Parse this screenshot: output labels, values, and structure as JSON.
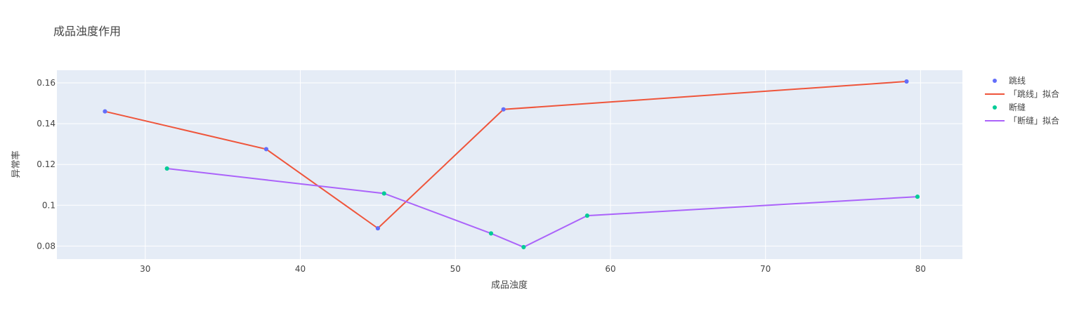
{
  "chart_data": {
    "type": "scatter",
    "title": "成品浊度作用",
    "xlabel": "成品浊度",
    "ylabel": "异常率",
    "xlim": [
      24.3,
      82.7
    ],
    "ylim": [
      0.0736,
      0.1662
    ],
    "xticks": [
      30,
      40,
      50,
      60,
      70,
      80
    ],
    "yticks": [
      0.08,
      0.1,
      0.12,
      0.14,
      0.16
    ],
    "ytick_labels": [
      "0.08",
      "0.1",
      "0.12",
      "0.14",
      "0.16"
    ],
    "grid": true,
    "legend_position": "top-right",
    "series": [
      {
        "name": "跳线",
        "mode": "markers",
        "color": "#636efa",
        "x": [
          27.4,
          37.8,
          45.0,
          53.1,
          79.1
        ],
        "y": [
          0.146,
          0.1275,
          0.0887,
          0.147,
          0.1607
        ]
      },
      {
        "name": "「跳线」拟合",
        "mode": "lines",
        "color": "#ef553b",
        "x": [
          27.4,
          37.8,
          45.0,
          53.1,
          79.1
        ],
        "y": [
          0.146,
          0.1275,
          0.0887,
          0.147,
          0.1607
        ]
      },
      {
        "name": "断缝",
        "mode": "markers",
        "color": "#00cc96",
        "x": [
          31.4,
          45.4,
          52.3,
          54.4,
          58.5,
          79.8
        ],
        "y": [
          0.118,
          0.1058,
          0.0862,
          0.0795,
          0.0949,
          0.1042
        ]
      },
      {
        "name": "「断缝」拟合",
        "mode": "lines",
        "color": "#ab63fa",
        "x": [
          31.4,
          45.4,
          52.3,
          54.4,
          58.5,
          79.8
        ],
        "y": [
          0.118,
          0.1058,
          0.0862,
          0.0795,
          0.0949,
          0.1042
        ]
      }
    ]
  },
  "colors": {
    "plot_background": "#e5ecf6",
    "grid": "#ffffff",
    "text": "#444444"
  }
}
